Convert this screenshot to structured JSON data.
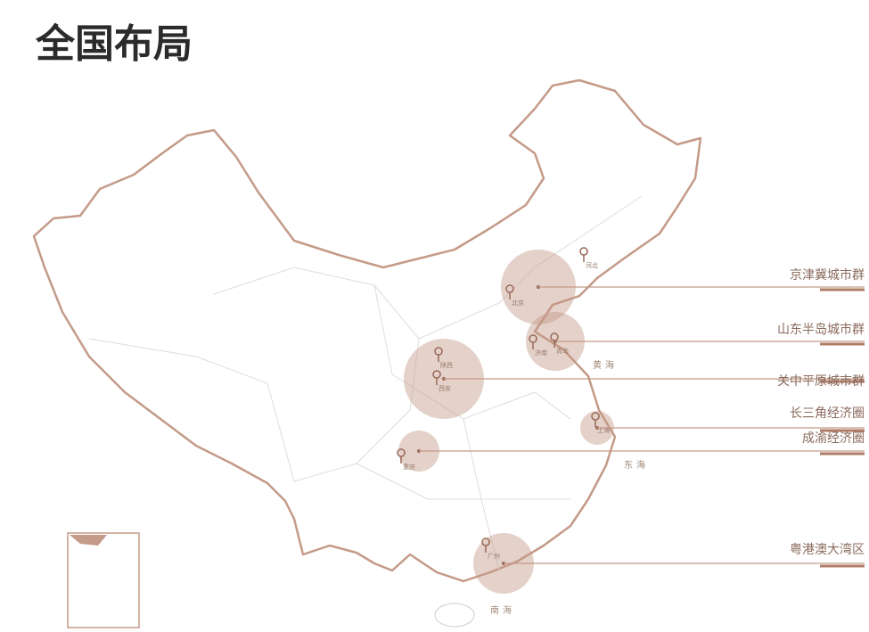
{
  "title": "全国布局",
  "regions": [
    {
      "name": "京津冀城市群"
    },
    {
      "name": "山东半岛城市群"
    },
    {
      "name": "关中平原城市群"
    },
    {
      "name": "长三角经济圈"
    },
    {
      "name": "成渝经济圈"
    },
    {
      "name": "粤港澳大湾区"
    }
  ],
  "places": [
    "河北",
    "北京",
    "济南",
    "青岛",
    "陕西",
    "西安",
    "重庆",
    "广州",
    "上海"
  ],
  "seas": [
    "黄海",
    "东海",
    "南海"
  ]
}
